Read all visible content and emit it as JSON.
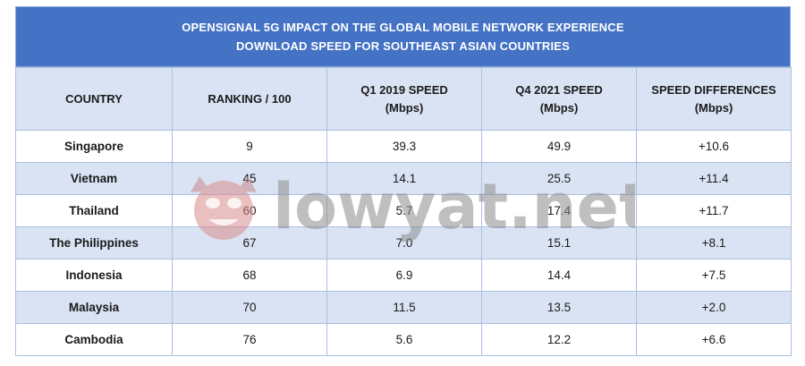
{
  "title": {
    "line1": "OPENSIGNAL 5G IMPACT ON THE GLOBAL MOBILE NETWORK EXPERIENCE",
    "line2": "DOWNLOAD SPEED FOR SOUTHEAST ASIAN COUNTRIES"
  },
  "headers": [
    {
      "line1": "COUNTRY",
      "line2": ""
    },
    {
      "line1": "RANKING / 100",
      "line2": ""
    },
    {
      "line1": "Q1 2019 SPEED",
      "line2": "(Mbps)"
    },
    {
      "line1": "Q4 2021 SPEED",
      "line2": "(Mbps)"
    },
    {
      "line1": "SPEED DIFFERENCES",
      "line2": "(Mbps)"
    }
  ],
  "watermark": {
    "text": "lowyat.net",
    "icon": "lowyat-mascot-icon",
    "color": "#e0332e"
  },
  "colors": {
    "title_bg": "#4472c4",
    "header_bg": "#dae3f3",
    "alt_row_bg": "#dae3f3",
    "border": "#a9bfe3"
  },
  "chart_data": {
    "type": "table",
    "title": "OPENSIGNAL 5G IMPACT ON THE GLOBAL MOBILE NETWORK EXPERIENCE DOWNLOAD SPEED FOR SOUTHEAST ASIAN COUNTRIES",
    "columns": [
      "COUNTRY",
      "RANKING / 100",
      "Q1 2019 SPEED (Mbps)",
      "Q4 2021 SPEED (Mbps)",
      "SPEED DIFFERENCES (Mbps)"
    ],
    "rows": [
      [
        "Singapore",
        "9",
        "39.3",
        "49.9",
        "+10.6"
      ],
      [
        "Vietnam",
        "45",
        "14.1",
        "25.5",
        "+11.4"
      ],
      [
        "Thailand",
        "60",
        "5.7",
        "17.4",
        "+11.7"
      ],
      [
        "The Philippines",
        "67",
        "7.0",
        "15.1",
        "+8.1"
      ],
      [
        "Indonesia",
        "68",
        "6.9",
        "14.4",
        "+7.5"
      ],
      [
        "Malaysia",
        "70",
        "11.5",
        "13.5",
        "+2.0"
      ],
      [
        "Cambodia",
        "76",
        "5.6",
        "12.2",
        "+6.6"
      ]
    ]
  }
}
